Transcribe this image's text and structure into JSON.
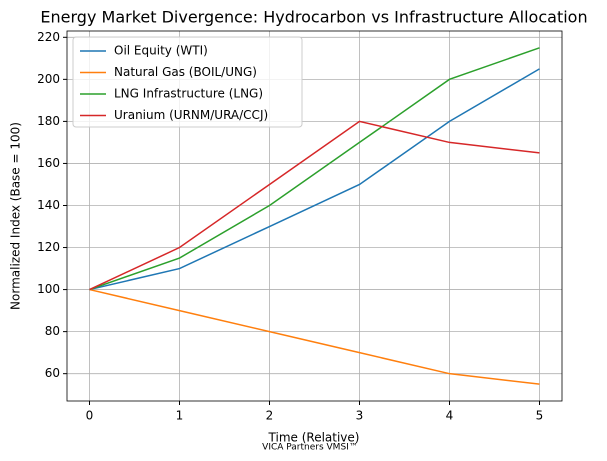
{
  "chart_data": {
    "type": "line",
    "title": "Energy Market Divergence: Hydrocarbon vs Infrastructure Allocation",
    "x_label": "Time (Relative)",
    "y_label": "Normalized Index (Base = 100)",
    "annotation": "VICA Partners VMSI™",
    "x": [
      0,
      1,
      2,
      3,
      4,
      5
    ],
    "series": [
      {
        "name": "Oil Equity (WTI)",
        "color": "#1f77b4",
        "values": [
          100,
          110,
          130,
          150,
          180,
          205
        ]
      },
      {
        "name": "Natural Gas (BOIL/UNG)",
        "color": "#ff7f0e",
        "values": [
          100,
          90,
          80,
          70,
          60,
          55
        ]
      },
      {
        "name": "LNG Infrastructure (LNG)",
        "color": "#2ca02c",
        "values": [
          100,
          115,
          140,
          170,
          200,
          215
        ]
      },
      {
        "name": "Uranium (URNM/URA/CCJ)",
        "color": "#d62728",
        "values": [
          100,
          120,
          150,
          180,
          170,
          165
        ]
      }
    ],
    "xlim": [
      -0.25,
      5.25
    ],
    "xticks": [
      0,
      1,
      2,
      3,
      4,
      5
    ],
    "ylim": [
      47,
      223
    ],
    "yticks": [
      60,
      80,
      100,
      120,
      140,
      160,
      180,
      200,
      220
    ],
    "grid": true,
    "legend": "upper left"
  }
}
